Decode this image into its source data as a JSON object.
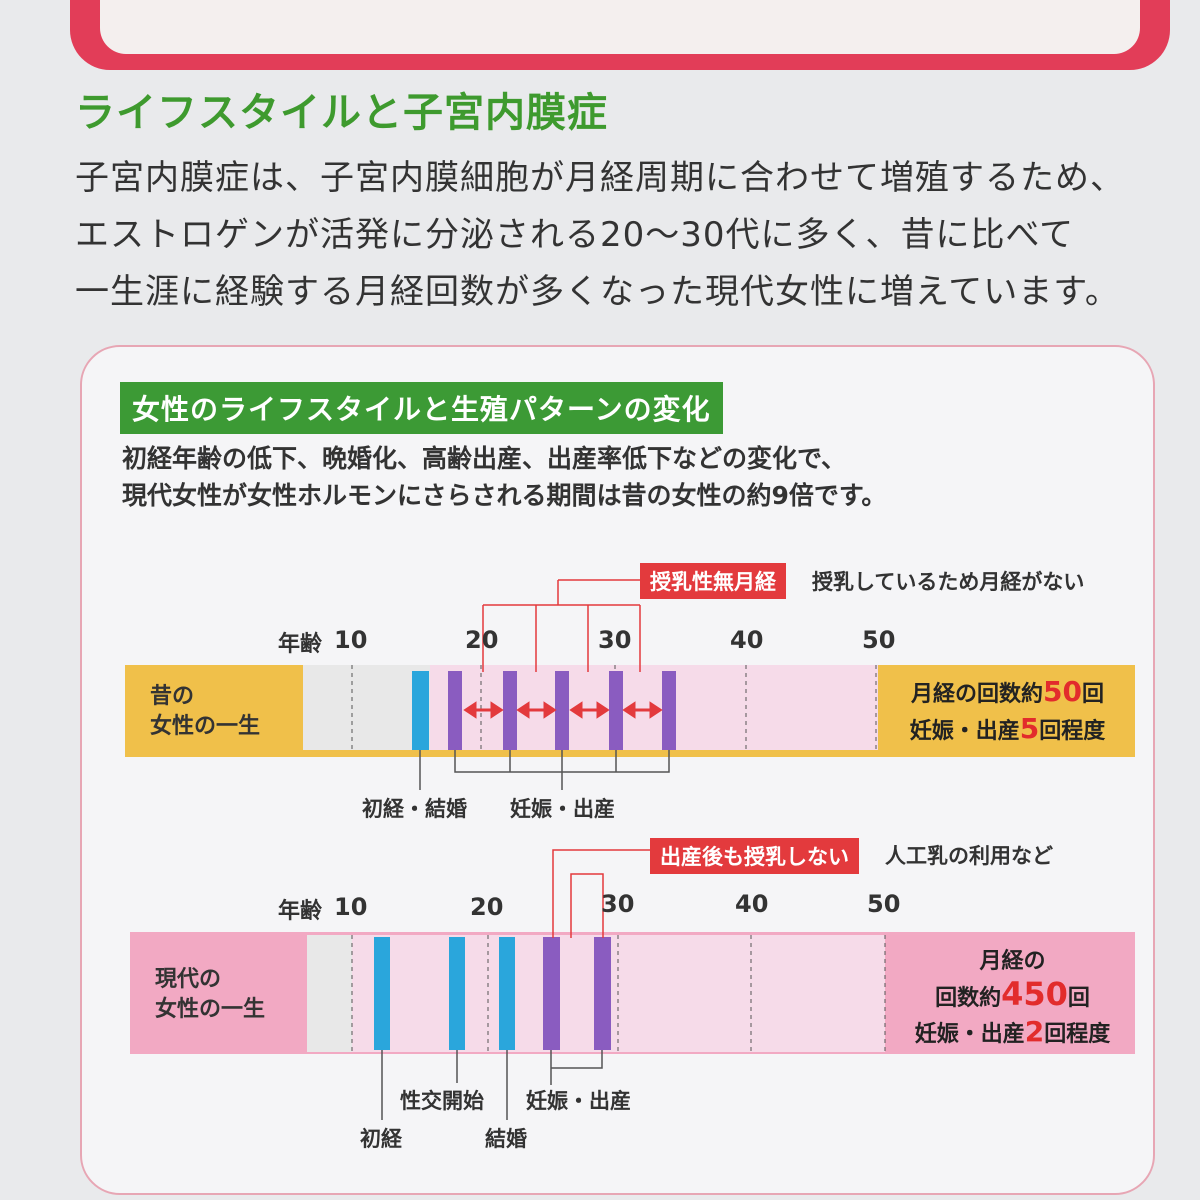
{
  "section_title": "ライフスタイルと子宮内膜症",
  "intro_lines": [
    "子宮内膜症は、子宮内膜細胞が月経周期に合わせて増殖するため、",
    "エストロゲンが活発に分泌される20～30代に多く、昔に比べて",
    "一生涯に経験する月経回数が多くなった現代女性に増えています。"
  ],
  "panel": {
    "title": "女性のライフスタイルと生殖パターンの変化",
    "desc_lines": [
      "初経年齢の低下、晩婚化、高齢出産、出産率低下などの変化で、",
      "現代女性が女性ホルモンにさらされる期間は昔の女性の約9倍です。"
    ]
  },
  "past": {
    "callout": "授乳性無月経",
    "callout_note": "授乳しているため月経がない",
    "age_prefix": "年齢",
    "ages": [
      "10",
      "20",
      "30",
      "40",
      "50"
    ],
    "row_label": [
      "昔の",
      "女性の一生"
    ],
    "events": {
      "menarche_marriage": "初経・結婚",
      "pregnancy_birth": "妊娠・出産"
    },
    "result_line1_pre": "月経の回数約",
    "result_line1_num": "50",
    "result_line1_post": "回",
    "result_line2_pre": "妊娠・出産",
    "result_line2_num": "5",
    "result_line2_post": "回程度"
  },
  "modern": {
    "callout": "出産後も授乳しない",
    "callout_note": "人工乳の利用など",
    "age_prefix": "年齢",
    "ages": [
      "10",
      "20",
      "30",
      "40",
      "50"
    ],
    "row_label": [
      "現代の",
      "女性の一生"
    ],
    "events": {
      "menarche": "初経",
      "first_intercourse": "性交開始",
      "marriage": "結婚",
      "pregnancy_birth": "妊娠・出産"
    },
    "result_line1": "月経の",
    "result_line2_pre": "回数約",
    "result_line2_num": "450",
    "result_line2_post": "回",
    "result_line3_pre": "妊娠・出産",
    "result_line3_num": "2",
    "result_line3_post": "回程度"
  },
  "colors": {
    "title_green": "#3e9a2e",
    "callout_red": "#e33a3d",
    "past_bar": "#f0c04a",
    "modern_bar": "#f2a9c3",
    "menstruation_blue": "#2aa6dc",
    "pregnancy_purple": "#8a5cc0",
    "life_pink": "#f6dbe9"
  }
}
